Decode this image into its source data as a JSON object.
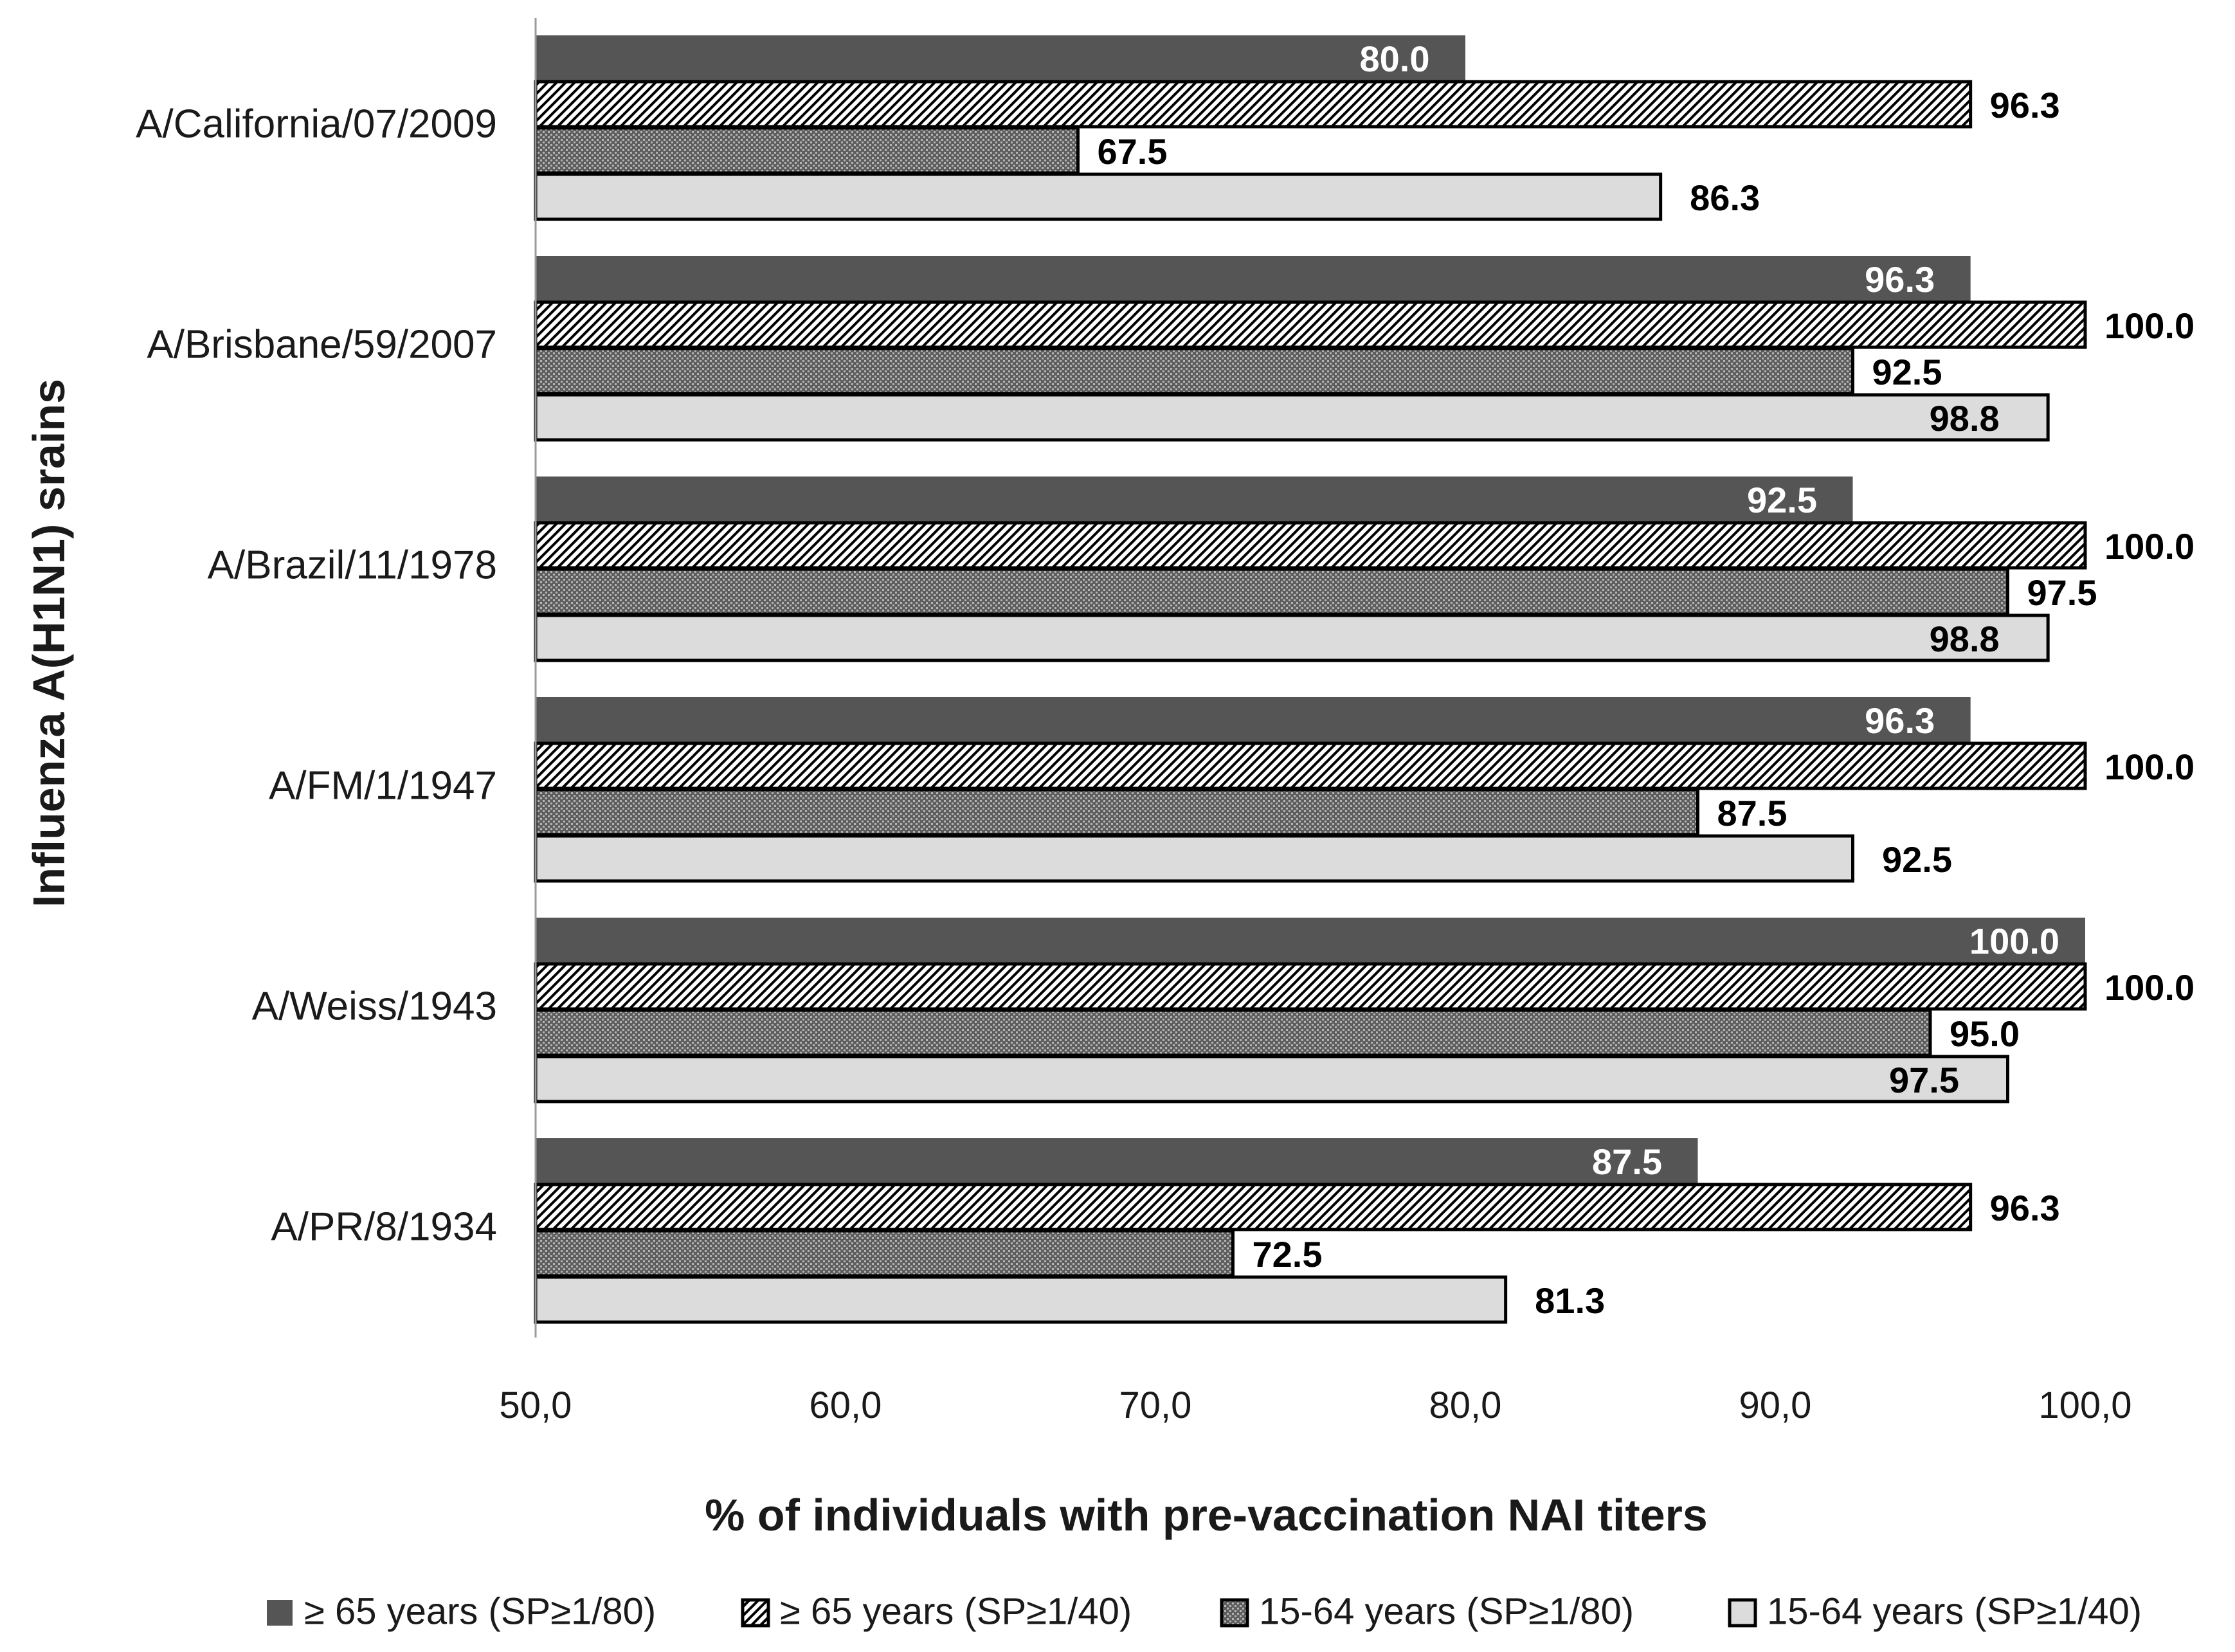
{
  "chart_data": {
    "type": "bar",
    "orientation": "horizontal",
    "title": "",
    "xlabel": "% of individuals with pre-vaccination NAI titers",
    "ylabel": "Influenza A(H1N1) srains",
    "xlim": [
      50,
      100
    ],
    "xticks": [
      50,
      60,
      70,
      80,
      90,
      100
    ],
    "xtick_labels": [
      "50,0",
      "60,0",
      "70,0",
      "80,0",
      "90,0",
      "100,0"
    ],
    "grid": false,
    "legend_position": "bottom",
    "categories": [
      "A/California/07/2009",
      "A/Brisbane/59/2007",
      "A/Brazil/11/1978",
      "A/FM/1/1947",
      "A/Weiss/1943",
      "A/PR/8/1934"
    ],
    "series": [
      {
        "name": "≥ 65 years (SP≥1/80)",
        "pattern": "solid-dark",
        "values": [
          80.0,
          96.3,
          92.5,
          96.3,
          100.0,
          87.5
        ],
        "labels": [
          "80.0",
          "96.3",
          "92.5",
          "96.3",
          "100.0",
          "87.5"
        ]
      },
      {
        "name": "≥ 65 years (SP≥1/40)",
        "pattern": "diagonal-hatch",
        "values": [
          96.3,
          100.0,
          100.0,
          100.0,
          100.0,
          96.3
        ],
        "labels": [
          "96.3",
          "100.0",
          "100.0",
          "100.0",
          "100.0",
          "96.3"
        ]
      },
      {
        "name": "15-64 years (SP≥1/80)",
        "pattern": "dense-dots",
        "values": [
          67.5,
          92.5,
          97.5,
          87.5,
          95.0,
          72.5
        ],
        "labels": [
          "67.5",
          "92.5",
          "97.5",
          "87.5",
          "95.0",
          "72.5"
        ]
      },
      {
        "name": "15-64 years (SP≥1/40)",
        "pattern": "light-solid",
        "values": [
          86.3,
          98.8,
          98.8,
          92.5,
          97.5,
          81.3
        ],
        "labels": [
          "86.3",
          "98.8",
          "98.8",
          "92.5",
          "97.5",
          "81.3"
        ]
      }
    ]
  },
  "colors": {
    "dark": "#555555",
    "light": "#dcdcdc",
    "outline": "#000000",
    "label_light": "#ffffff",
    "label_dark": "#000000"
  }
}
